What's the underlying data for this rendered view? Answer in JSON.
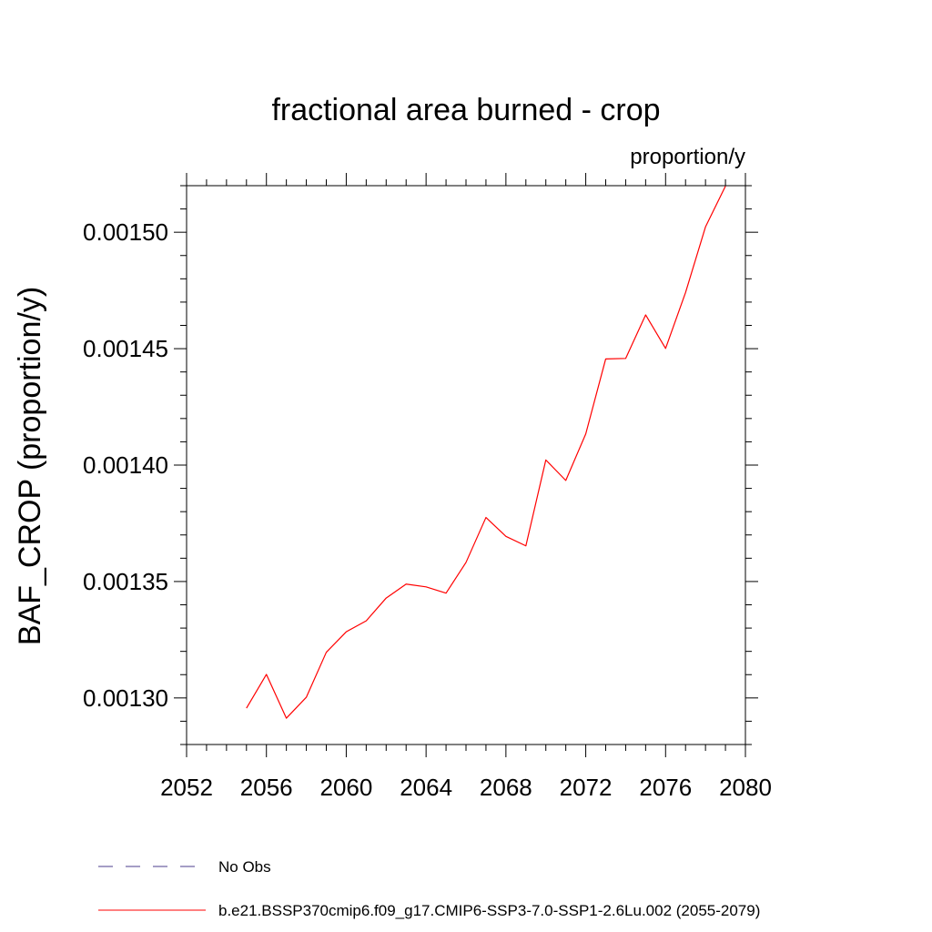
{
  "chart_data": {
    "type": "line",
    "title": "fractional area burned - crop",
    "units_label": "proportion/y",
    "ylabel": "BAF_CROP  (proportion/y)",
    "xlabel": "",
    "xlim": [
      2052,
      2080
    ],
    "ylim": [
      0.00128,
      0.00152
    ],
    "x_ticks": [
      2052,
      2056,
      2060,
      2064,
      2068,
      2072,
      2076,
      2080
    ],
    "x_tick_labels": [
      "2052",
      "2056",
      "2060",
      "2064",
      "2068",
      "2072",
      "2076",
      "2080"
    ],
    "y_ticks": [
      0.0013,
      0.00135,
      0.0014,
      0.00145,
      0.0015
    ],
    "y_tick_labels": [
      "0.00130",
      "0.00135",
      "0.00140",
      "0.00145",
      "0.00150"
    ],
    "grid": false,
    "series": [
      {
        "name": "b.e21.BSSP370cmip6.f09_g17.CMIP6-SSP3-7.0-SSP1-2.6Lu.002 (2055-2079)",
        "color": "#ff0000",
        "style": "solid",
        "x": [
          2055,
          2056,
          2057,
          2058,
          2059,
          2060,
          2061,
          2062,
          2063,
          2064,
          2065,
          2066,
          2067,
          2068,
          2069,
          2070,
          2071,
          2072,
          2073,
          2074,
          2075,
          2076,
          2077,
          2078,
          2079
        ],
        "values": [
          0.0012956,
          0.0013101,
          0.0012913,
          0.0013003,
          0.0013196,
          0.0013284,
          0.0013331,
          0.0013429,
          0.0013489,
          0.0013477,
          0.001345,
          0.0013582,
          0.0013775,
          0.0013694,
          0.0013653,
          0.0014022,
          0.0013934,
          0.0014134,
          0.0014456,
          0.0014458,
          0.0014645,
          0.0014501,
          0.0014741,
          0.0015023,
          0.0015198
        ]
      }
    ],
    "legend": {
      "placement": "bottom",
      "entries": [
        {
          "label": "No Obs",
          "color": "#4b3c8c",
          "style": "dashed"
        },
        {
          "label": "b.e21.BSSP370cmip6.f09_g17.CMIP6-SSP3-7.0-SSP1-2.6Lu.002 (2055-2079)",
          "color": "#ff0000",
          "style": "solid"
        }
      ]
    }
  }
}
